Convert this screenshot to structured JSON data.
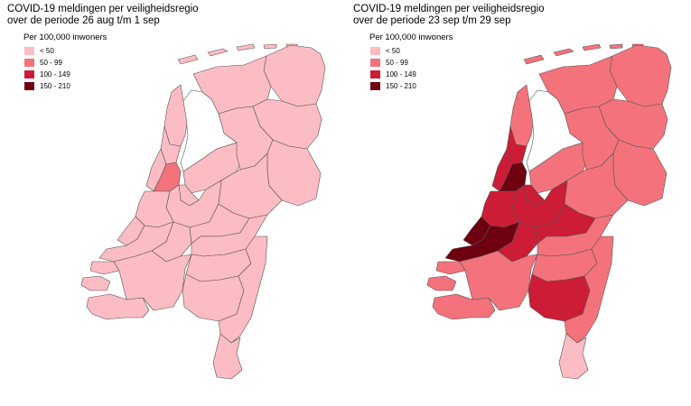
{
  "colors": {
    "lt50": "#fcbcc3",
    "50_99": "#f4727c",
    "100_149": "#cc1c36",
    "150_210": "#6e0010"
  },
  "maps": [
    {
      "title_line1": "COVID-19 meldingen per veiligheidsregio",
      "title_line2": "over de periode 26 aug t/m 1 sep",
      "legend": {
        "title": "Per 100,000 inwoners",
        "items": [
          {
            "label": "< 50",
            "category": "lt50"
          },
          {
            "label": "50 - 99",
            "category": "50_99"
          },
          {
            "label": "100 - 149",
            "category": "100_149"
          },
          {
            "label": "150 - 210",
            "category": "150_210"
          }
        ]
      },
      "regions": {
        "islands": "lt50",
        "groningen": "lt50",
        "friesland": "lt50",
        "drenthe": "lt50",
        "noordholland-noord": "lt50",
        "zaanstreek": "lt50",
        "kennemerland": "lt50",
        "amsterdam": "50_99",
        "flevoland": "lt50",
        "ijsselland": "lt50",
        "twente": "lt50",
        "gelderland-noord-oost": "lt50",
        "gooi": "lt50",
        "utrecht": "lt50",
        "hollands-midden": "lt50",
        "haaglanden": "lt50",
        "rotterdam": "lt50",
        "zuidholland-zuid": "lt50",
        "gelderland-midden": "lt50",
        "gelderland-zuid": "lt50",
        "zeeland": "lt50",
        "midden-west-brabant": "lt50",
        "brabant-noord": "lt50",
        "brabant-zuidoost": "lt50",
        "limburg-noord": "lt50",
        "limburg-zuid": "lt50"
      }
    },
    {
      "title_line1": "COVID-19 meldingen per veiligheidsregio",
      "title_line2": "over de periode 23 sep t/m 29 sep",
      "legend": {
        "title": "Per 100,000 inwoners",
        "items": [
          {
            "label": "< 50",
            "category": "lt50"
          },
          {
            "label": "50 - 99",
            "category": "50_99"
          },
          {
            "label": "100 - 149",
            "category": "100_149"
          },
          {
            "label": "150 - 210",
            "category": "150_210"
          }
        ]
      },
      "regions": {
        "islands": "50_99",
        "groningen": "50_99",
        "friesland": "50_99",
        "drenthe": "50_99",
        "noordholland-noord": "50_99",
        "zaanstreek": "100_149",
        "kennemerland": "100_149",
        "amsterdam": "150_210",
        "flevoland": "50_99",
        "ijsselland": "50_99",
        "twente": "50_99",
        "gelderland-noord-oost": "50_99",
        "gooi": "100_149",
        "utrecht": "100_149",
        "hollands-midden": "100_149",
        "haaglanden": "150_210",
        "rotterdam": "150_210",
        "zuidholland-zuid": "100_149",
        "gelderland-midden": "100_149",
        "gelderland-zuid": "50_99",
        "zeeland": "50_99",
        "midden-west-brabant": "50_99",
        "brabant-noord": "50_99",
        "brabant-zuidoost": "100_149",
        "limburg-noord": "50_99",
        "limburg-zuid": "lt50"
      }
    }
  ]
}
